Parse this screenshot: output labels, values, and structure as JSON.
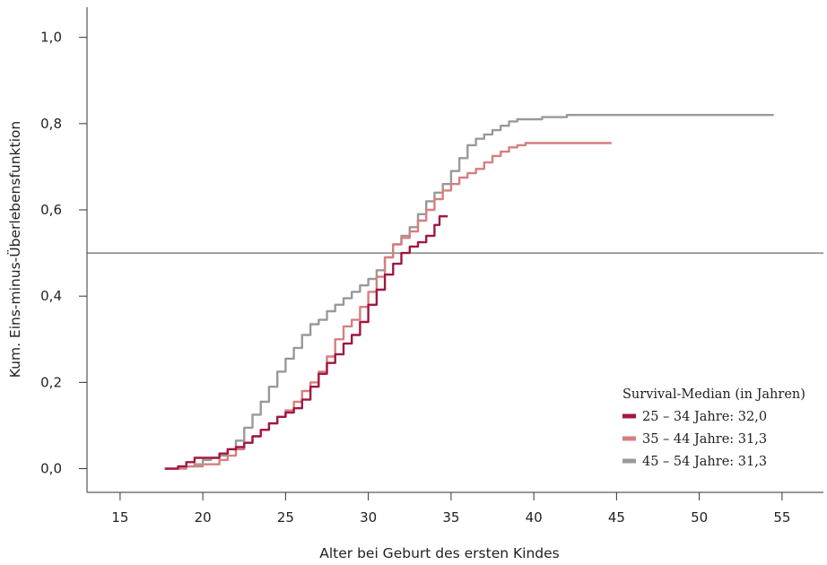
{
  "chart_data": {
    "type": "line",
    "xlabel": "Alter bei Geburt des ersten Kindes",
    "ylabel": "Kum. Eins-minus-Überlebensfunktion",
    "xlim": [
      13,
      57.5
    ],
    "ylim": [
      -0.055,
      1.07
    ],
    "x_ticks": [
      15,
      20,
      25,
      30,
      35,
      40,
      45,
      50,
      55
    ],
    "x_tick_labels": [
      "15",
      "20",
      "25",
      "30",
      "35",
      "40",
      "45",
      "50",
      "55"
    ],
    "y_ticks": [
      0.0,
      0.2,
      0.4,
      0.6,
      0.8,
      1.0
    ],
    "y_tick_labels": [
      "0,0",
      "0,2",
      "0,4",
      "0,6",
      "0,8",
      "1,0"
    ],
    "reference_line_y": 0.5,
    "grid": false,
    "legend": {
      "position": "bottom-right",
      "title": "Survival-Median (in Jahren)"
    },
    "series": [
      {
        "name": "25 – 34 Jahre: 32,0",
        "color": "#a3173f",
        "points": [
          [
            17.7,
            0.0
          ],
          [
            18.5,
            0.005
          ],
          [
            19.0,
            0.015
          ],
          [
            19.5,
            0.025
          ],
          [
            20.5,
            0.025
          ],
          [
            21.0,
            0.035
          ],
          [
            21.5,
            0.045
          ],
          [
            22.0,
            0.05
          ],
          [
            22.5,
            0.06
          ],
          [
            23.0,
            0.075
          ],
          [
            23.5,
            0.09
          ],
          [
            24.0,
            0.105
          ],
          [
            24.5,
            0.12
          ],
          [
            25.0,
            0.13
          ],
          [
            25.5,
            0.14
          ],
          [
            26.0,
            0.16
          ],
          [
            26.5,
            0.19
          ],
          [
            27.0,
            0.22
          ],
          [
            27.5,
            0.245
          ],
          [
            28.0,
            0.265
          ],
          [
            28.5,
            0.29
          ],
          [
            29.0,
            0.31
          ],
          [
            29.5,
            0.34
          ],
          [
            30.0,
            0.38
          ],
          [
            30.5,
            0.415
          ],
          [
            31.0,
            0.45
          ],
          [
            31.5,
            0.475
          ],
          [
            32.0,
            0.5
          ],
          [
            32.5,
            0.515
          ],
          [
            33.0,
            0.525
          ],
          [
            33.5,
            0.54
          ],
          [
            34.0,
            0.565
          ],
          [
            34.3,
            0.585
          ],
          [
            34.8,
            0.585
          ]
        ]
      },
      {
        "name": "35 – 44 Jahre: 31,3",
        "color": "#d67f7f",
        "points": [
          [
            17.7,
            0.0
          ],
          [
            18.5,
            0.0
          ],
          [
            19.0,
            0.005
          ],
          [
            20.0,
            0.01
          ],
          [
            21.0,
            0.02
          ],
          [
            21.5,
            0.03
          ],
          [
            22.0,
            0.045
          ],
          [
            22.5,
            0.06
          ],
          [
            23.0,
            0.075
          ],
          [
            23.5,
            0.09
          ],
          [
            24.0,
            0.105
          ],
          [
            24.5,
            0.12
          ],
          [
            25.0,
            0.135
          ],
          [
            25.5,
            0.155
          ],
          [
            26.0,
            0.18
          ],
          [
            26.5,
            0.2
          ],
          [
            27.0,
            0.225
          ],
          [
            27.5,
            0.26
          ],
          [
            28.0,
            0.3
          ],
          [
            28.5,
            0.33
          ],
          [
            29.0,
            0.345
          ],
          [
            29.5,
            0.375
          ],
          [
            30.0,
            0.41
          ],
          [
            30.5,
            0.445
          ],
          [
            31.0,
            0.49
          ],
          [
            31.5,
            0.52
          ],
          [
            32.0,
            0.535
          ],
          [
            32.5,
            0.55
          ],
          [
            33.0,
            0.575
          ],
          [
            33.5,
            0.6
          ],
          [
            34.0,
            0.625
          ],
          [
            34.5,
            0.645
          ],
          [
            35.0,
            0.66
          ],
          [
            35.5,
            0.675
          ],
          [
            36.0,
            0.685
          ],
          [
            36.5,
            0.695
          ],
          [
            37.0,
            0.71
          ],
          [
            37.5,
            0.725
          ],
          [
            38.0,
            0.735
          ],
          [
            38.5,
            0.745
          ],
          [
            39.0,
            0.75
          ],
          [
            39.5,
            0.755
          ],
          [
            40.0,
            0.755
          ],
          [
            44.7,
            0.755
          ]
        ]
      },
      {
        "name": "45 – 54 Jahre: 31,3",
        "color": "#999999",
        "points": [
          [
            17.7,
            0.0
          ],
          [
            18.5,
            0.005
          ],
          [
            19.5,
            0.01
          ],
          [
            20.0,
            0.02
          ],
          [
            20.5,
            0.025
          ],
          [
            21.0,
            0.03
          ],
          [
            21.5,
            0.045
          ],
          [
            22.0,
            0.065
          ],
          [
            22.5,
            0.095
          ],
          [
            23.0,
            0.125
          ],
          [
            23.5,
            0.155
          ],
          [
            24.0,
            0.19
          ],
          [
            24.5,
            0.225
          ],
          [
            25.0,
            0.255
          ],
          [
            25.5,
            0.28
          ],
          [
            26.0,
            0.31
          ],
          [
            26.5,
            0.335
          ],
          [
            27.0,
            0.345
          ],
          [
            27.5,
            0.365
          ],
          [
            28.0,
            0.38
          ],
          [
            28.5,
            0.395
          ],
          [
            29.0,
            0.41
          ],
          [
            29.5,
            0.425
          ],
          [
            30.0,
            0.44
          ],
          [
            30.5,
            0.46
          ],
          [
            31.0,
            0.49
          ],
          [
            31.5,
            0.52
          ],
          [
            32.0,
            0.54
          ],
          [
            32.5,
            0.56
          ],
          [
            33.0,
            0.59
          ],
          [
            33.5,
            0.62
          ],
          [
            34.0,
            0.64
          ],
          [
            34.5,
            0.66
          ],
          [
            35.0,
            0.69
          ],
          [
            35.5,
            0.72
          ],
          [
            36.0,
            0.75
          ],
          [
            36.5,
            0.765
          ],
          [
            37.0,
            0.775
          ],
          [
            37.5,
            0.785
          ],
          [
            38.0,
            0.795
          ],
          [
            38.5,
            0.805
          ],
          [
            39.0,
            0.81
          ],
          [
            40.0,
            0.81
          ],
          [
            40.5,
            0.815
          ],
          [
            41.5,
            0.815
          ],
          [
            42.0,
            0.82
          ],
          [
            54.5,
            0.82
          ]
        ]
      }
    ]
  }
}
